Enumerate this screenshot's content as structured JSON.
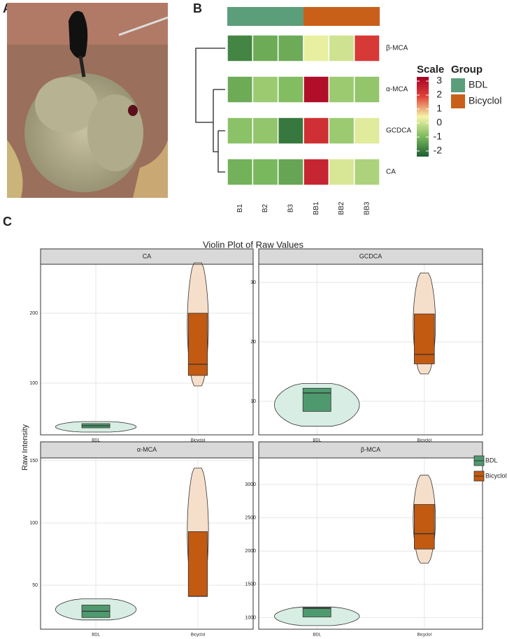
{
  "panel_labels": [
    "A",
    "B",
    "C"
  ],
  "chart_data": [
    {
      "type": "heatmap",
      "columns": [
        "B1",
        "B2",
        "B3",
        "BB1",
        "BB2",
        "BB3"
      ],
      "rows": [
        "β-MCA",
        "α-MCA",
        "GCDCA",
        "CA"
      ],
      "values": [
        [
          -1.8,
          -1.2,
          -1.2,
          0.3,
          0,
          2.1
        ],
        [
          -1.2,
          -0.6,
          -0.9,
          3,
          -0.6,
          -0.7
        ],
        [
          -0.8,
          -0.7,
          -2,
          2.3,
          -0.6,
          0.2
        ],
        [
          -1.1,
          -1,
          -1.3,
          2.5,
          0.1,
          -0.4
        ]
      ],
      "scale_title": "Scale",
      "scale_lim": [
        -2.4,
        3.3
      ],
      "scale_ticks": [
        3,
        2,
        1,
        0,
        -1,
        -2
      ],
      "colorscale": [
        "#1b5e30",
        "#7cba5e",
        "#f5f5a8",
        "#e0443a",
        "#a50026"
      ],
      "group_title": "Group",
      "groups": [
        {
          "name": "BDL",
          "color": "#5a9e7a",
          "count": 3
        },
        {
          "name": "Bicyclol",
          "color": "#c8601a",
          "count": 3
        }
      ]
    },
    {
      "type": "violin",
      "title": "Violin Plot of Raw Values",
      "ylabel": "Raw Intensity",
      "categories": [
        "BDL",
        "Bicyclol"
      ],
      "colors": [
        {
          "violin": "#d8ede3",
          "box": "#4e9a6e"
        },
        {
          "violin": "#f6dfca",
          "box": "#c25a12"
        }
      ],
      "facets": [
        {
          "name": "CA",
          "ylim": [
            26,
            270
          ],
          "yticks": [
            100,
            200
          ],
          "stats": [
            {
              "min": 30,
              "q1": 36,
              "median": 39,
              "q3": 42,
              "max": 45
            },
            {
              "min": 96,
              "q1": 111,
              "median": 127,
              "q3": 200,
              "max": 272
            }
          ]
        },
        {
          "name": "GCDCA",
          "ylim": [
            4.35,
            33.06
          ],
          "yticks": [
            10,
            20,
            30
          ],
          "stats": [
            {
              "min": 5.8,
              "q1": 8.3,
              "median": 11.4,
              "q3": 12.2,
              "max": 13
            },
            {
              "min": 14.6,
              "q1": 16.3,
              "median": 17.9,
              "q3": 24.7,
              "max": 31.6
            }
          ]
        },
        {
          "name": "α-MCA",
          "ylim": [
            14.6,
            152.2
          ],
          "yticks": [
            50,
            100,
            150
          ],
          "stats": [
            {
              "min": 22,
              "q1": 24,
              "median": 29,
              "q3": 34,
              "max": 39
            },
            {
              "min": 41,
              "q1": 41,
              "median": 41,
              "q3": 93,
              "max": 144
            }
          ]
        },
        {
          "name": "β-MCA",
          "ylim": [
            826,
            3399
          ],
          "yticks": [
            1000,
            1500,
            2000,
            2500,
            3000
          ],
          "stats": [
            {
              "min": 880,
              "q1": 1010,
              "median": 1140,
              "q3": 1150,
              "max": 1160
            },
            {
              "min": 1820,
              "q1": 2030,
              "median": 2260,
              "q3": 2700,
              "max": 3140
            }
          ]
        }
      ]
    }
  ]
}
